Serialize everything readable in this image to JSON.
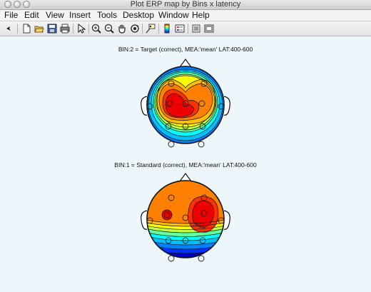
{
  "window": {
    "title": "Plot ERP map by Bins x latency"
  },
  "menubar": {
    "items": [
      "File",
      "Edit",
      "View",
      "Insert",
      "Tools",
      "Desktop",
      "Window",
      "Help"
    ]
  },
  "toolbar": {
    "icons": [
      "pointer-arrow-icon",
      "new-figure-icon",
      "open-file-icon",
      "save-icon",
      "print-icon",
      "select-arrow-icon",
      "zoom-in-icon",
      "zoom-out-icon",
      "pan-hand-icon",
      "rotate-3d-icon",
      "data-cursor-icon",
      "colorbar-icon",
      "legend-icon",
      "hide-plot-tools-icon",
      "show-plot-tools-icon"
    ]
  },
  "plots": [
    {
      "title": "BIN:2 = Target (correct), MEA:'mean' LAT:400-600"
    },
    {
      "title": "BIN:1 = Standard (correct), MEA:'mean' LAT:400-600"
    }
  ],
  "colors": {
    "background": "#ecf6fb",
    "scale": [
      "#0000c8",
      "#0032ff",
      "#0080ff",
      "#00c0ff",
      "#00ffff",
      "#60ffa0",
      "#c0ff40",
      "#ffff00",
      "#ffc000",
      "#ff8000",
      "#ff3000",
      "#ee0000"
    ]
  }
}
